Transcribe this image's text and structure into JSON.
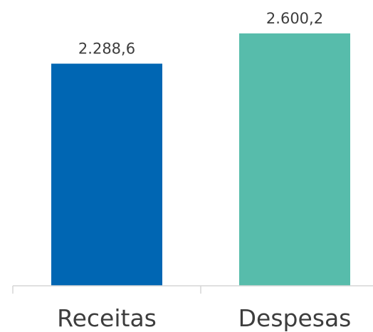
{
  "chart_data": {
    "type": "bar",
    "categories": [
      "Receitas",
      "Despesas"
    ],
    "values": [
      2288.6,
      2600.2
    ],
    "value_labels": [
      "2.288,6",
      "2.600,2"
    ],
    "colors": [
      "#0066b3",
      "#57bcab"
    ],
    "title": "",
    "xlabel": "",
    "ylabel": "",
    "ylim": [
      0,
      2600.2
    ],
    "grid": false,
    "legend": "none"
  }
}
